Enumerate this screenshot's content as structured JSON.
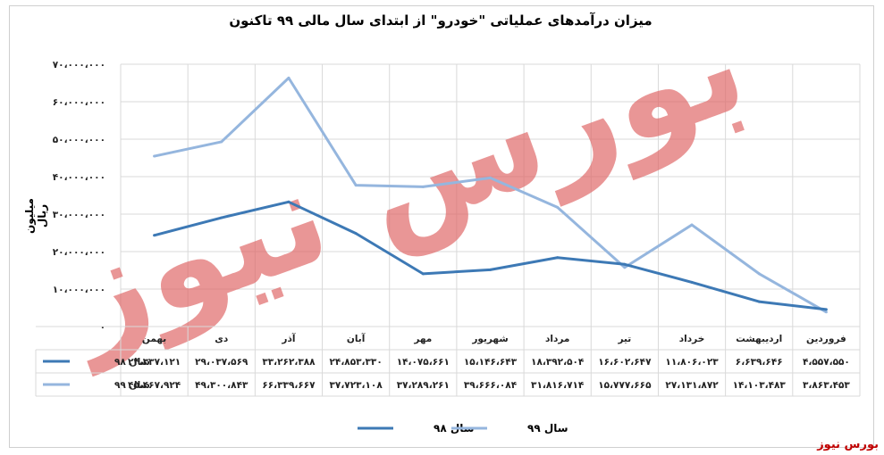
{
  "chart_data": {
    "type": "line",
    "title": "میزان درآمدهای عملیاتی \"خودرو\" از ابتدای سال مالی ۹۹ تاکنون",
    "ylabel": "میلیون ریال",
    "ylim": [
      0,
      70000000
    ],
    "yticks": [
      0,
      10000000,
      20000000,
      30000000,
      40000000,
      50000000,
      60000000,
      70000000
    ],
    "ytick_labels": [
      "۰",
      "۱۰،۰۰۰،۰۰۰",
      "۲۰،۰۰۰،۰۰۰",
      "۳۰،۰۰۰،۰۰۰",
      "۴۰،۰۰۰،۰۰۰",
      "۵۰،۰۰۰،۰۰۰",
      "۶۰،۰۰۰،۰۰۰",
      "۷۰،۰۰۰،۰۰۰"
    ],
    "categories": [
      "فروردین",
      "اردیبهشت",
      "خرداد",
      "تیر",
      "مرداد",
      "شهریور",
      "مهر",
      "آبان",
      "آذر",
      "دی",
      "بهمن"
    ],
    "grid": true,
    "legend_position": "bottom",
    "series": [
      {
        "name": "سال ۹۸",
        "color": "#3d79b5",
        "values": [
          4557550,
          6639646,
          11806023,
          16602647,
          18392504,
          15146643,
          14075661,
          24853330,
          33262388,
          29037569,
          24337121
        ],
        "labels": [
          "۴،۵۵۷،۵۵۰",
          "۶،۶۳۹،۶۴۶",
          "۱۱،۸۰۶،۰۲۳",
          "۱۶،۶۰۲،۶۴۷",
          "۱۸،۳۹۲،۵۰۴",
          "۱۵،۱۴۶،۶۴۳",
          "۱۴،۰۷۵،۶۶۱",
          "۲۴،۸۵۳،۳۳۰",
          "۳۳،۲۶۲،۳۸۸",
          "۲۹،۰۳۷،۵۶۹",
          "۲۴،۳۳۷،۱۲۱"
        ]
      },
      {
        "name": "سال ۹۹",
        "color": "#95b6de",
        "values": [
          3863453,
          14103483,
          27131872,
          15777665,
          31816714,
          39666084,
          37289261,
          37723108,
          66339667,
          49300843,
          45467924
        ],
        "labels": [
          "۳،۸۶۳،۴۵۳",
          "۱۴،۱۰۳،۴۸۳",
          "۲۷،۱۳۱،۸۷۲",
          "۱۵،۷۷۷،۶۶۵",
          "۳۱،۸۱۶،۷۱۴",
          "۳۹،۶۶۶،۰۸۴",
          "۳۷،۲۸۹،۲۶۱",
          "۳۷،۷۲۳،۱۰۸",
          "۶۶،۳۳۹،۶۶۷",
          "۴۹،۳۰۰،۸۴۳",
          "۴۵،۴۶۷،۹۲۴"
        ]
      }
    ]
  },
  "watermark": "بورس نیوز",
  "brand": "بورس نیوز"
}
